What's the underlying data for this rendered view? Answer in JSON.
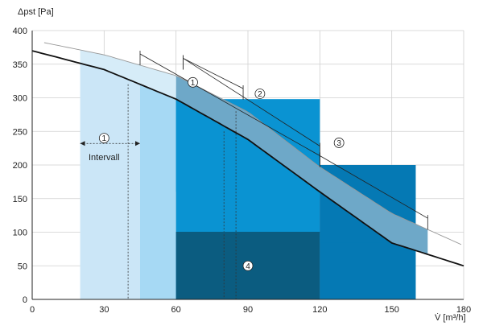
{
  "chart_data": {
    "type": "area",
    "xlabel": "V̇ [m³/h]",
    "ylabel": "Δpst [Pa]",
    "xlim": [
      0,
      180
    ],
    "ylim": [
      0,
      400
    ],
    "x_ticks": [
      "0",
      "30",
      "60",
      "90",
      "120",
      "150",
      "180"
    ],
    "y_ticks": [
      "0",
      "50",
      "100",
      "150",
      "200",
      "250",
      "300",
      "350",
      "400"
    ],
    "grid": true,
    "colors": {
      "curve": "#111111",
      "curve_upper": "#999999",
      "zone_light": "#cbe6f7",
      "zone_mid": "#a6d9f4",
      "zone_main": "#0a93d2",
      "zone_dark": "#0b5c80",
      "zone_right": "#0579b4",
      "band": "#6ea8c8",
      "band_light": "#d6ecf8"
    },
    "curve": {
      "x": [
        0,
        30,
        60,
        90,
        120,
        150,
        180
      ],
      "y": [
        370,
        342,
        298,
        238,
        160,
        84,
        50
      ]
    },
    "curve_upper": {
      "x": [
        5,
        30,
        60,
        90,
        120,
        150,
        180
      ],
      "y": [
        382,
        364,
        333,
        279,
        197,
        128,
        80
      ]
    },
    "regions": [
      {
        "x0": 20,
        "x1": 45,
        "y_top": 350,
        "color_key": "zone_light"
      },
      {
        "x0": 45,
        "x1": 60,
        "y_top": 318,
        "color_key": "zone_mid"
      },
      {
        "x0": 60,
        "x1": 120,
        "y_top": 298,
        "color_key": "zone_main"
      },
      {
        "x0": 60,
        "x1": 120,
        "y_top": 100,
        "color_key": "zone_dark"
      },
      {
        "x0": 120,
        "x1": 160,
        "y_top": 200,
        "color_key": "zone_right"
      }
    ],
    "annotations": [
      {
        "label": "1",
        "x": 67,
        "y": 323
      },
      {
        "label": "2",
        "x": 95,
        "y": 306
      },
      {
        "label": "3",
        "x": 128,
        "y": 233
      },
      {
        "label": "1",
        "x": 30,
        "y": 240
      },
      {
        "label": "4",
        "x": 90,
        "y": 50
      }
    ],
    "interval_label": "Intervall"
  }
}
